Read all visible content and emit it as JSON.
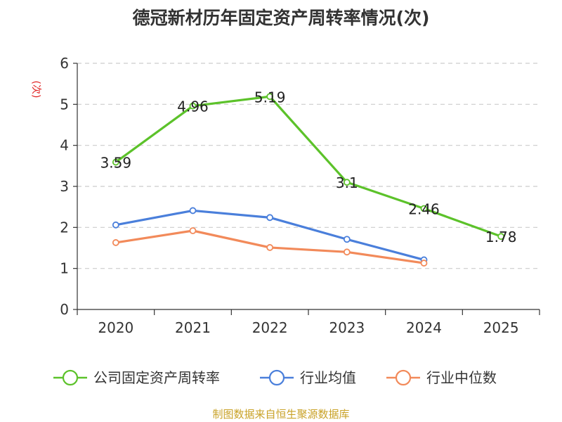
{
  "chart_data": {
    "type": "line",
    "title": "德冠新材历年固定资产周转率情况(次)",
    "ylabel": "(次)",
    "xlabel": "",
    "categories": [
      "2020",
      "2021",
      "2022",
      "2023",
      "2024",
      "2025"
    ],
    "ylim": [
      0,
      6
    ],
    "yticks": [
      0,
      1,
      2,
      3,
      4,
      5,
      6
    ],
    "grid": true,
    "legend_position": "bottom",
    "series": [
      {
        "name": "公司固定资产周转率",
        "color": "#5cc22a",
        "values": [
          3.59,
          4.96,
          5.19,
          3.1,
          2.46,
          1.78
        ],
        "labels": [
          "3.59",
          "4.96",
          "5.19",
          "3.1",
          "2.46",
          "1.78"
        ]
      },
      {
        "name": "行业均值",
        "color": "#4a7fdb",
        "values": [
          2.06,
          2.41,
          2.24,
          1.71,
          1.21,
          null
        ]
      },
      {
        "name": "行业中位数",
        "color": "#f28a5a",
        "values": [
          1.63,
          1.92,
          1.51,
          1.4,
          1.13,
          null
        ]
      }
    ],
    "ylabel_color": "#e02020"
  },
  "source": "制图数据来自恒生聚源数据库"
}
